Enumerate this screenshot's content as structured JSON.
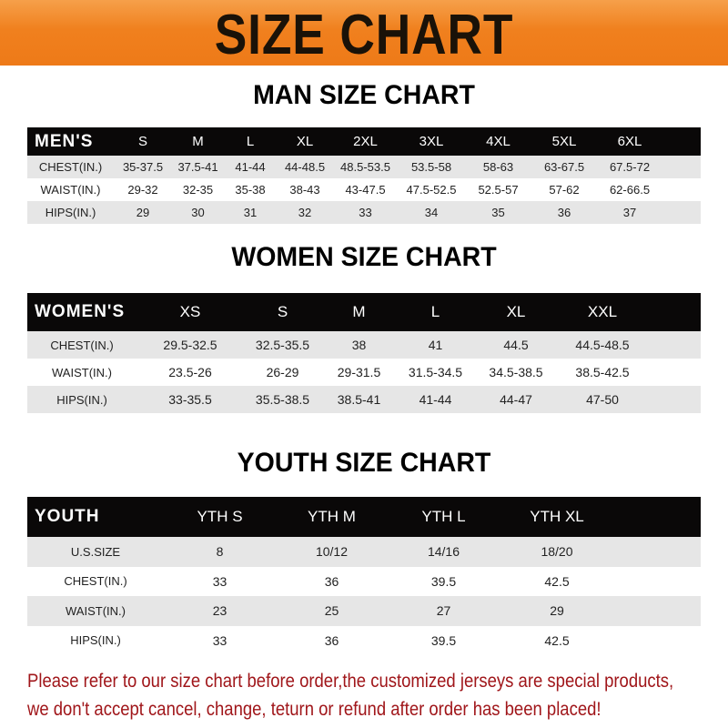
{
  "title": "SIZE CHART",
  "men": {
    "title": "MAN SIZE CHART",
    "header": [
      "MEN'S",
      "S",
      "M",
      "L",
      "XL",
      "2XL",
      "3XL",
      "4XL",
      "5XL",
      "6XL"
    ],
    "rows": [
      [
        "CHEST(IN.)",
        "35-37.5",
        "37.5-41",
        "41-44",
        "44-48.5",
        "48.5-53.5",
        "53.5-58",
        "58-63",
        "63-67.5",
        "67.5-72"
      ],
      [
        "WAIST(IN.)",
        "29-32",
        "32-35",
        "35-38",
        "38-43",
        "43-47.5",
        "47.5-52.5",
        "52.5-57",
        "57-62",
        "62-66.5"
      ],
      [
        "HIPS(IN.)",
        "29",
        "30",
        "31",
        "32",
        "33",
        "34",
        "35",
        "36",
        "37"
      ]
    ]
  },
  "women": {
    "title": "WOMEN SIZE CHART",
    "header": [
      "WOMEN'S",
      "XS",
      "S",
      "M",
      "L",
      "XL",
      "XXL"
    ],
    "rows": [
      [
        "CHEST(IN.)",
        "29.5-32.5",
        "32.5-35.5",
        "38",
        "41",
        "44.5",
        "44.5-48.5"
      ],
      [
        "WAIST(IN.)",
        "23.5-26",
        "26-29",
        "29-31.5",
        "31.5-34.5",
        "34.5-38.5",
        "38.5-42.5"
      ],
      [
        "HIPS(IN.)",
        "33-35.5",
        "35.5-38.5",
        "38.5-41",
        "41-44",
        "44-47",
        "47-50"
      ]
    ]
  },
  "youth": {
    "title": "YOUTH SIZE CHART",
    "header": [
      "YOUTH",
      "YTH S",
      "YTH M",
      "YTH L",
      "YTH XL"
    ],
    "rows": [
      [
        "U.S.SIZE",
        "8",
        "10/12",
        "14/16",
        "18/20"
      ],
      [
        "CHEST(IN.)",
        "33",
        "36",
        "39.5",
        "42.5"
      ],
      [
        "WAIST(IN.)",
        "23",
        "25",
        "27",
        "29"
      ],
      [
        "HIPS(IN.)",
        "33",
        "36",
        "39.5",
        "42.5"
      ]
    ]
  },
  "note": [
    "Please refer to our size chart before order,the customized jerseys are special products,",
    "we don't accept cancel, change, teturn or refund after order has been placed!"
  ],
  "colors": {
    "banner": "#f0801e",
    "header_row": "#0a0808",
    "stripe": "#e6e6e6",
    "note": "#a0161a"
  }
}
